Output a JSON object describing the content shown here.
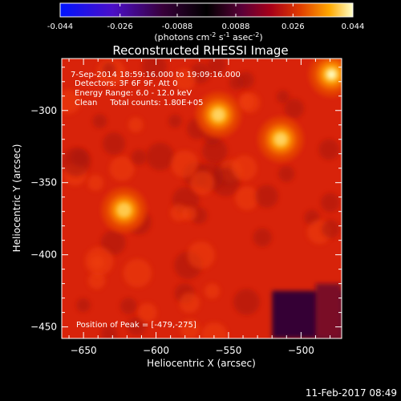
{
  "chart_data": {
    "type": "heatmap",
    "title": "Reconstructed RHESSI Image",
    "colorbar": {
      "ticks": [
        "-0.044",
        "-0.026",
        "-0.0088",
        "0.0088",
        "0.026",
        "0.044"
      ],
      "tick_values": [
        -0.044,
        -0.026,
        -0.0088,
        0.0088,
        0.026,
        0.044
      ],
      "range": [
        -0.044,
        0.044
      ],
      "label_main": "(photons cm",
      "label_sup1": "-2",
      "label_mid1": " s",
      "label_sup2": "-1",
      "label_mid2": " asec",
      "label_sup3": "-2",
      "label_end": ")"
    },
    "xlabel": "Heliocentric X (arcsec)",
    "ylabel": "Heliocentric Y (arcsec)",
    "xlim": [
      -665,
      -472
    ],
    "ylim": [
      -458,
      -264
    ],
    "xticks": [
      -650,
      -600,
      -550,
      -500
    ],
    "xtick_labels": [
      "−650",
      "−600",
      "−550",
      "−500"
    ],
    "yticks": [
      -300,
      -350,
      -400,
      -450
    ],
    "ytick_labels": [
      "−300",
      "−350",
      "−400",
      "−450"
    ],
    "annotations": [
      "7-Sep-2014 18:59:16.000 to 19:09:16.000",
      "Detectors: 3F 6F 9F, Att 0",
      "Energy Range: 6.0 - 12.0 keV",
      "Clean     Total counts: 1.80E+05"
    ],
    "peak_label": "Position of Peak = [-479,-275]",
    "sources": [
      {
        "x": -479,
        "y": -275,
        "value": 0.044
      },
      {
        "x": -557,
        "y": -303,
        "value": 0.04
      },
      {
        "x": -514,
        "y": -320,
        "value": 0.04
      },
      {
        "x": -622,
        "y": -369,
        "value": 0.039
      }
    ],
    "background_level": 0.017,
    "dark_region": {
      "x": [
        -520,
        -472
      ],
      "y": [
        -458,
        -425
      ],
      "value": -0.012
    }
  },
  "footer": {
    "date": "11-Feb-2017 08:49"
  }
}
